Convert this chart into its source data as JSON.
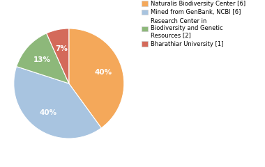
{
  "slices": [
    6,
    6,
    2,
    1
  ],
  "labels": [
    "Naturalis Biodiversity Center [6]",
    "Mined from GenBank, NCBI [6]",
    "Research Center in\nBiodiversity and Genetic\nResources [2]",
    "Bharathiar University [1]"
  ],
  "colors": [
    "#F4A85A",
    "#A8C4E0",
    "#8DB87A",
    "#D46A5A"
  ],
  "startangle": 90,
  "background_color": "#ffffff",
  "text_color": "#ffffff",
  "fontsize": 7.5
}
